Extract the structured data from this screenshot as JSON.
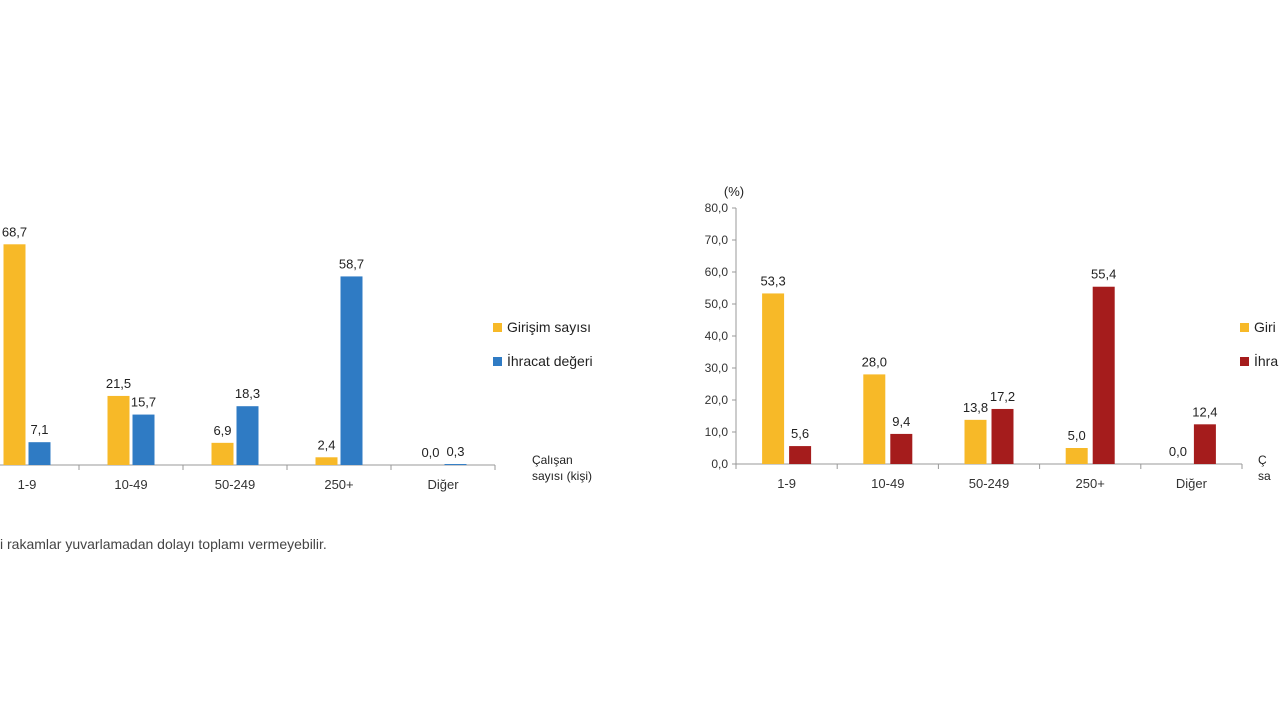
{
  "footnote": "i rakamlar yuvarlamadan dolayı toplamı vermeyebilir.",
  "charts": [
    {
      "id": "left",
      "chart_data": {
        "type": "bar",
        "categories": [
          "1-9",
          "10-49",
          "50-249",
          "250+",
          "Diğer"
        ],
        "series": [
          {
            "name": "Girişim sayısı",
            "color": "#f7b928",
            "values": [
              68.7,
              21.5,
              6.9,
              2.4,
              0.0
            ],
            "labels": [
              "68,7",
              "21,5",
              "6,9",
              "2,4",
              "0,0"
            ]
          },
          {
            "name": "İhracat değeri",
            "color": "#2f7bc4",
            "values": [
              7.1,
              15.7,
              18.3,
              58.7,
              0.3
            ],
            "labels": [
              "7,1",
              "15,7",
              "18,3",
              "58,7",
              "0,3"
            ]
          }
        ],
        "xlabel": [
          "Çalışan",
          "sayısı (kişi)"
        ],
        "ylim": [
          0,
          80
        ],
        "grid": false,
        "legend": "right"
      }
    },
    {
      "id": "right",
      "chart_data": {
        "type": "bar",
        "categories": [
          "1-9",
          "10-49",
          "50-249",
          "250+",
          "Diğer"
        ],
        "series": [
          {
            "name": "Giri",
            "color": "#f7b928",
            "values": [
              53.3,
              28.0,
              13.8,
              5.0,
              0.0
            ],
            "labels": [
              "53,3",
              "28,0",
              "13,8",
              "5,0",
              "0,0"
            ]
          },
          {
            "name": "İhra",
            "color": "#a51c1c",
            "values": [
              5.6,
              9.4,
              17.2,
              55.4,
              12.4
            ],
            "labels": [
              "5,6",
              "9,4",
              "17,2",
              "55,4",
              "12,4"
            ]
          }
        ],
        "ylabel": "(%)",
        "yticks": [
          "0,0",
          "10,0",
          "20,0",
          "30,0",
          "40,0",
          "50,0",
          "60,0",
          "70,0",
          "80,0"
        ],
        "xlabel": [
          "Ç",
          "sa"
        ],
        "ylim": [
          0,
          80
        ],
        "grid": false,
        "legend": "right"
      }
    }
  ]
}
